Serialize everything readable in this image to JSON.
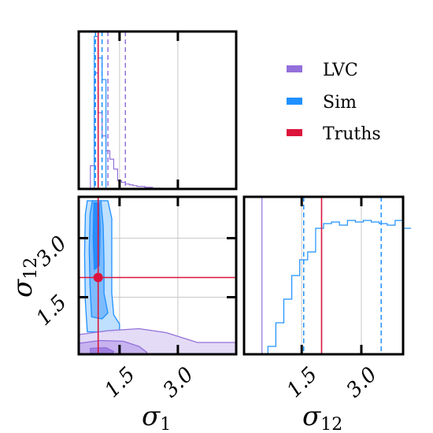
{
  "chart_data": {
    "type": "corner",
    "parameters": [
      "σ1",
      "σ12"
    ],
    "axis_labels": {
      "x": [
        {
          "base": "σ",
          "sub": "1"
        },
        {
          "base": "σ",
          "sub": "12"
        }
      ],
      "y": [
        {
          "base": "σ",
          "sub": "12"
        }
      ]
    },
    "ticks": {
      "sigma1": {
        "values": [
          1.5,
          3.0
        ],
        "labels": [
          "1.5",
          "3.0"
        ]
      },
      "sigma12": {
        "values": [
          1.5,
          3.0
        ],
        "labels": [
          "1.5",
          "3.0"
        ]
      }
    },
    "ranges": {
      "sigma1": [
        0.45,
        4.5
      ],
      "sigma12": [
        0.05,
        4.05
      ]
    },
    "grid": true,
    "legend": {
      "placement": "top-right",
      "entries": [
        {
          "name": "LVC",
          "color": "#9370db"
        },
        {
          "name": "Sim",
          "color": "#1e90ff"
        },
        {
          "name": "Truths",
          "color": "#dc143c"
        }
      ]
    },
    "truths": {
      "sigma1": 0.95,
      "sigma12": 2.0
    },
    "quantile_lines": {
      "sigma1": {
        "LVC": [
          0.95,
          1.2,
          1.65
        ],
        "Sim": [
          0.88,
          1.05
        ]
      },
      "sigma12": {
        "Sim": [
          1.55,
          3.5
        ]
      }
    },
    "hist_sigma1": {
      "bins_start": 0.45,
      "bin_width": 0.1,
      "LVC": [
        0,
        0,
        0,
        14,
        70,
        46,
        32,
        23,
        18,
        12,
        5,
        4,
        3,
        2.5,
        2,
        1.5,
        1.5,
        1,
        1,
        0.5,
        0.5
      ],
      "Sim": [
        0,
        0,
        0,
        0,
        92,
        79,
        66,
        0,
        0,
        0,
        0,
        0,
        0,
        0,
        0,
        0,
        0,
        0,
        0,
        0,
        0
      ]
    },
    "hist_sigma12": {
      "bins_start": 0.05,
      "bin_width": 0.2,
      "Sim": [
        0,
        0,
        0,
        0.05,
        0.2,
        0.35,
        0.5,
        0.6,
        0.65,
        0.8,
        0.83,
        0.84,
        0.82,
        0.85,
        0.84,
        0.85,
        0.84,
        0.83,
        0.82,
        0.85,
        0.8
      ]
    },
    "contours_2d": {
      "Sim": [
        {
          "level": "outer",
          "points": [
            [
              0.67,
              0.62
            ],
            [
              0.62,
              1.4
            ],
            [
              0.6,
              2.6
            ],
            [
              0.62,
              3.6
            ],
            [
              0.67,
              3.95
            ],
            [
              1.2,
              3.95
            ],
            [
              1.3,
              3.5
            ],
            [
              1.3,
              2.4
            ],
            [
              1.3,
              1.6
            ],
            [
              1.35,
              1.05
            ],
            [
              1.5,
              0.82
            ],
            [
              1.5,
              0.62
            ]
          ]
        },
        {
          "level": "middle",
          "points": [
            [
              0.78,
              1.0
            ],
            [
              0.74,
              1.8
            ],
            [
              0.72,
              2.7
            ],
            [
              0.74,
              3.6
            ],
            [
              0.8,
              3.95
            ],
            [
              1.02,
              3.95
            ],
            [
              1.08,
              3.3
            ],
            [
              1.1,
              2.4
            ],
            [
              1.1,
              1.6
            ],
            [
              1.2,
              1.1
            ],
            [
              1.05,
              0.95
            ]
          ]
        },
        {
          "level": "inner",
          "points": [
            [
              0.85,
              2.2
            ],
            [
              0.82,
              3.0
            ],
            [
              0.84,
              3.9
            ],
            [
              0.98,
              3.9
            ],
            [
              1.0,
              3.2
            ],
            [
              0.98,
              2.3
            ]
          ]
        }
      ],
      "LVC": [
        {
          "level": "outer",
          "points": [
            [
              0.45,
              0.55
            ],
            [
              1.2,
              0.65
            ],
            [
              2.0,
              0.7
            ],
            [
              2.7,
              0.6
            ],
            [
              3.5,
              0.35
            ],
            [
              4.5,
              0.35
            ],
            [
              4.5,
              0.05
            ],
            [
              0.45,
              0.05
            ]
          ]
        },
        {
          "level": "middle",
          "points": [
            [
              0.45,
              0.33
            ],
            [
              1.0,
              0.4
            ],
            [
              1.6,
              0.38
            ],
            [
              2.0,
              0.25
            ],
            [
              2.2,
              0.1
            ],
            [
              2.2,
              0.05
            ],
            [
              0.45,
              0.05
            ]
          ]
        },
        {
          "level": "inner",
          "points": [
            [
              0.75,
              0.2
            ],
            [
              1.15,
              0.22
            ],
            [
              1.35,
              0.12
            ],
            [
              1.3,
              0.05
            ],
            [
              0.75,
              0.05
            ]
          ]
        }
      ]
    }
  }
}
